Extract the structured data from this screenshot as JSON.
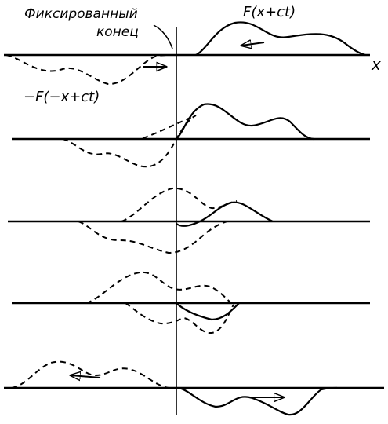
{
  "labels": {
    "fixed_end_line1": "Фиксированный",
    "fixed_end_line2": "конец",
    "incident_wave": "F(x+ct)",
    "reflected_wave": "−F(−x+ct)",
    "axis_x": "x"
  },
  "panel_count": 5
}
